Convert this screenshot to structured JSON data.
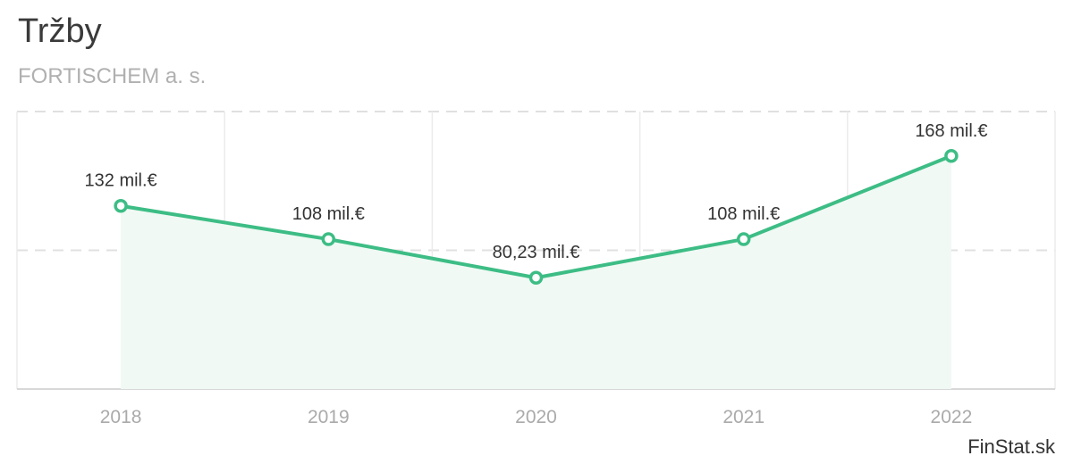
{
  "header": {
    "title": "Tržby",
    "subtitle": "FORTISCHEM a. s."
  },
  "footer": {
    "brand": "FinStat.sk"
  },
  "colors": {
    "line": "#3dbd85",
    "area": "#f0f9f4",
    "grid": "#e0e0e0",
    "tick_text": "#aaaaaa",
    "label_text": "#333333"
  },
  "chart_data": {
    "type": "line",
    "title": "Tržby",
    "subtitle": "FORTISCHEM a. s.",
    "categories": [
      "2018",
      "2019",
      "2020",
      "2021",
      "2022"
    ],
    "series": [
      {
        "values": [
          132,
          108,
          80.23,
          108,
          168
        ],
        "labels": [
          "132 mil.€",
          "108 mil.€",
          "80,23 mil.€",
          "108 mil.€",
          "168 mil.€"
        ]
      }
    ],
    "unit": "mil.€",
    "ylim": [
      0,
      200
    ],
    "grid": true,
    "area_fill": true
  }
}
